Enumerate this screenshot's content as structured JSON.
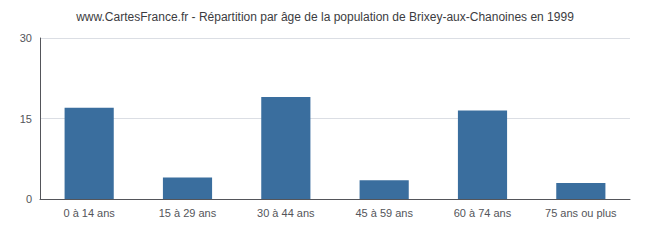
{
  "chart_data": {
    "type": "bar",
    "title": "www.CartesFrance.fr - Répartition par âge de la population de Brixey-aux-Chanoines en 1999",
    "categories": [
      "0 à 14 ans",
      "15 à 29 ans",
      "30 à 44 ans",
      "45 à 59 ans",
      "60 à 74 ans",
      "75 ans ou plus"
    ],
    "values": [
      17,
      4,
      19,
      3.5,
      16.5,
      3
    ],
    "color": "#3a6e9e",
    "ylim": [
      0,
      30
    ],
    "yticks": [
      0,
      15,
      30
    ],
    "grid": true
  }
}
